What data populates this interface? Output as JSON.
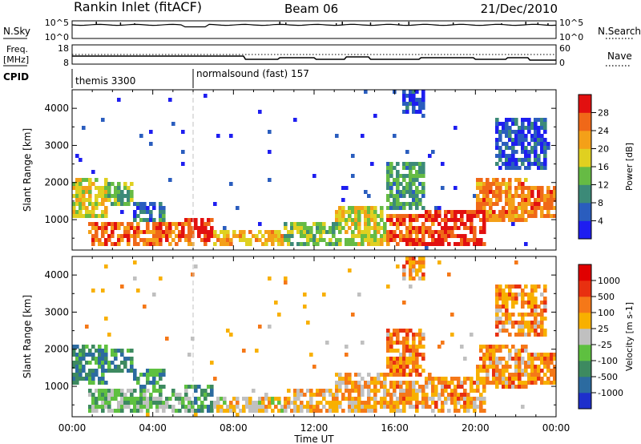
{
  "header": {
    "station": "Rankin Inlet (fitACF)",
    "beam": "Beam 06",
    "date": "21/Dec/2010"
  },
  "status_panels": {
    "nsky_label": "N.Sky",
    "nsky_ticks": [
      "10^5",
      "10^0"
    ],
    "nsearch_label": "N.Search",
    "nsearch_ticks": [
      "10^5",
      "10^0"
    ],
    "freq_label": "Freq.",
    "freq_unit": "[MHz]",
    "freq_ticks": [
      "18",
      "8"
    ],
    "nave_label": "Nave",
    "nave_ticks": [
      "60",
      "0"
    ],
    "cpid_label": "CPID",
    "cpid_segments": [
      {
        "name": "themis 3300",
        "start_hour": 0
      },
      {
        "name": "normalsound (fast) 157",
        "start_hour": 6
      }
    ]
  },
  "chart_data": [
    {
      "type": "heatmap",
      "name": "power",
      "ylabel": "Slant Range [km]",
      "ylim": [
        180,
        4500
      ],
      "yticks": [
        1000,
        2000,
        3000,
        4000
      ],
      "xlim": [
        0,
        24
      ],
      "colorbar": {
        "label": "Power [dB]",
        "ticks": [
          "4",
          "8",
          "12",
          "16",
          "20",
          "24",
          "28"
        ],
        "range": [
          0,
          32
        ],
        "colors": [
          "#1e1ef0",
          "#2a5dbe",
          "#3c8a78",
          "#66bb44",
          "#e0d020",
          "#f4a018",
          "#f06818",
          "#e21010"
        ]
      },
      "regions": [
        {
          "t0": 0.0,
          "t1": 1.8,
          "r0": 1050,
          "r1": 2100,
          "level": 0.55
        },
        {
          "t0": 0.0,
          "t1": 0.6,
          "r0": 1200,
          "r1": 1800,
          "level": 0.9
        },
        {
          "t0": 1.8,
          "t1": 3.0,
          "r0": 1400,
          "r1": 2050,
          "level": 0.4
        },
        {
          "t0": 3.0,
          "t1": 4.6,
          "r0": 900,
          "r1": 1500,
          "level": 0.25
        },
        {
          "t0": 0.8,
          "t1": 6.0,
          "r0": 250,
          "r1": 950,
          "level": 0.8
        },
        {
          "t0": 5.6,
          "t1": 7.0,
          "r0": 250,
          "r1": 1000,
          "level": 0.92
        },
        {
          "t0": 7.0,
          "t1": 10.5,
          "r0": 250,
          "r1": 750,
          "level": 0.65
        },
        {
          "t0": 10.5,
          "t1": 13.5,
          "r0": 250,
          "r1": 900,
          "level": 0.45
        },
        {
          "t0": 13.0,
          "t1": 15.5,
          "r0": 250,
          "r1": 1400,
          "level": 0.55
        },
        {
          "t0": 15.5,
          "t1": 18.0,
          "r0": 250,
          "r1": 1100,
          "level": 0.85
        },
        {
          "t0": 15.5,
          "t1": 17.5,
          "r0": 1300,
          "r1": 2600,
          "level": 0.35
        },
        {
          "t0": 17.5,
          "t1": 20.5,
          "r0": 300,
          "r1": 1300,
          "level": 0.92
        },
        {
          "t0": 20.0,
          "t1": 22.5,
          "r0": 900,
          "r1": 2100,
          "level": 0.75
        },
        {
          "t0": 22.5,
          "t1": 24.0,
          "r0": 1000,
          "r1": 1900,
          "level": 0.78
        },
        {
          "t0": 21.0,
          "t1": 23.5,
          "r0": 2300,
          "r1": 3700,
          "level": 0.18
        },
        {
          "t0": 16.3,
          "t1": 17.5,
          "r0": 3800,
          "r1": 4500,
          "level": 0.15
        }
      ]
    },
    {
      "type": "heatmap",
      "name": "velocity",
      "ylabel": "Slant Range [km]",
      "ylim": [
        180,
        4500
      ],
      "yticks": [
        1000,
        2000,
        3000,
        4000
      ],
      "xlim": [
        0,
        24
      ],
      "colorbar": {
        "label": "Velocity [m s-1]",
        "ticks": [
          "1000",
          "500",
          "100",
          "25",
          "-25",
          "-100",
          "-500",
          "-1000"
        ],
        "colors": [
          "#1e2fcc",
          "#2c6ba0",
          "#3d8a60",
          "#5ec040",
          "#c0c0c0",
          "#f8b000",
          "#f57818",
          "#e83010",
          "#e00000"
        ]
      },
      "regions": [
        {
          "t0": 0.0,
          "t1": 1.8,
          "r0": 1050,
          "r1": 2100,
          "level": 0.25
        },
        {
          "t0": 1.8,
          "t1": 3.0,
          "r0": 1400,
          "r1": 2000,
          "level": 0.25
        },
        {
          "t0": 3.0,
          "t1": 4.6,
          "r0": 900,
          "r1": 1500,
          "level": 0.3
        },
        {
          "t0": 0.8,
          "t1": 6.0,
          "r0": 250,
          "r1": 950,
          "level": 0.4
        },
        {
          "t0": 5.6,
          "t1": 7.0,
          "r0": 250,
          "r1": 1000,
          "level": 0.3
        },
        {
          "t0": 7.0,
          "t1": 10.5,
          "r0": 250,
          "r1": 750,
          "level": 0.55
        },
        {
          "t0": 10.5,
          "t1": 13.5,
          "r0": 250,
          "r1": 900,
          "level": 0.6
        },
        {
          "t0": 13.0,
          "t1": 15.5,
          "r0": 250,
          "r1": 1400,
          "level": 0.62
        },
        {
          "t0": 15.5,
          "t1": 18.0,
          "r0": 250,
          "r1": 1100,
          "level": 0.65
        },
        {
          "t0": 15.5,
          "t1": 17.5,
          "r0": 1300,
          "r1": 2600,
          "level": 0.68
        },
        {
          "t0": 17.5,
          "t1": 20.5,
          "r0": 300,
          "r1": 1300,
          "level": 0.66
        },
        {
          "t0": 20.0,
          "t1": 22.5,
          "r0": 900,
          "r1": 2100,
          "level": 0.68
        },
        {
          "t0": 22.5,
          "t1": 24.0,
          "r0": 1000,
          "r1": 1900,
          "level": 0.68
        },
        {
          "t0": 21.0,
          "t1": 23.5,
          "r0": 2300,
          "r1": 3700,
          "level": 0.66
        },
        {
          "t0": 16.3,
          "t1": 17.5,
          "r0": 3800,
          "r1": 4500,
          "level": 0.66
        }
      ]
    }
  ],
  "x_axis": {
    "ticks": [
      "00:00",
      "04:00",
      "08:00",
      "12:00",
      "16:00",
      "20:00",
      "00:00"
    ],
    "tick_hours": [
      0,
      4,
      8,
      12,
      16,
      20,
      24
    ],
    "label": "Time UT"
  },
  "colors": {
    "axis": "#000000",
    "dashed_marker": "#bbbbbb",
    "dotted_ref": "#000000"
  }
}
